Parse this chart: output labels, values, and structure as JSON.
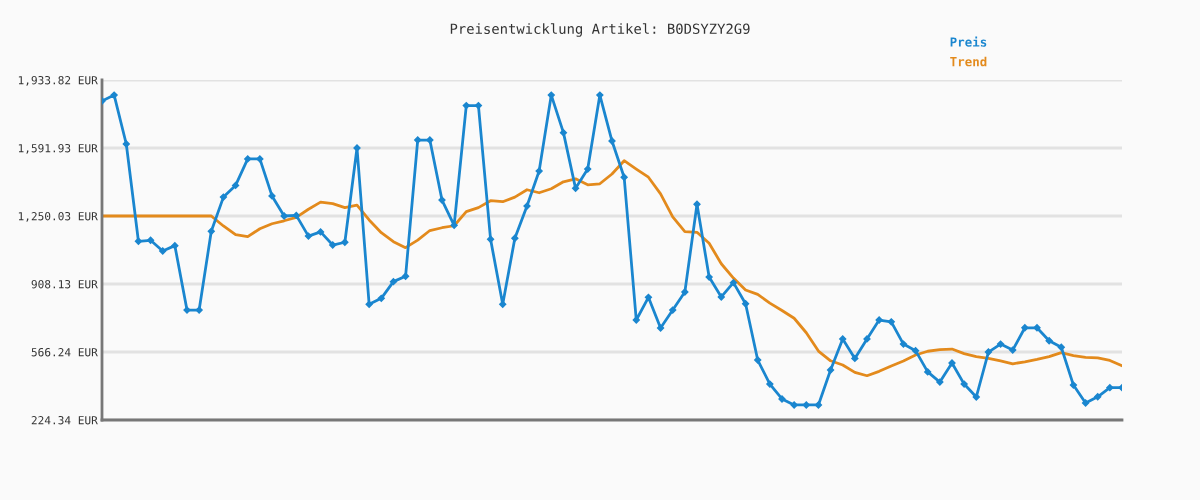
{
  "chart_data": {
    "type": "line",
    "title": "Preisentwicklung Artikel: B0DSYZY2G9",
    "categories": [
      null,
      null,
      null,
      null,
      null,
      null,
      null,
      null,
      null,
      null,
      null,
      null,
      null,
      null,
      null,
      null,
      null,
      null,
      null,
      null,
      null,
      null,
      null,
      null,
      null,
      null,
      null,
      null,
      null,
      null,
      null,
      null,
      null,
      null,
      null,
      null,
      null,
      null,
      null,
      null,
      null,
      null,
      null,
      null,
      null,
      null,
      null,
      null,
      null,
      null,
      null,
      null,
      null,
      null,
      null,
      null,
      null,
      null,
      null,
      null,
      null,
      null,
      null,
      null,
      null,
      null,
      null,
      null,
      null,
      null,
      null,
      null,
      null,
      null,
      null,
      null,
      null,
      null,
      null,
      null,
      null,
      null,
      null,
      null,
      null
    ],
    "series": [
      {
        "name": "Preis",
        "color": "#1a86cf",
        "marker": "diamond",
        "values": [
          1828,
          1858,
          1612,
          1123,
          1128,
          1074,
          1101,
          777,
          777,
          1173,
          1345,
          1404,
          1537,
          1537,
          1351,
          1250,
          1253,
          1149,
          1170,
          1104,
          1118,
          1592,
          806,
          836,
          920,
          947,
          1632,
          1632,
          1330,
          1203,
          1805,
          1805,
          1133,
          806,
          1138,
          1300,
          1476,
          1858,
          1669,
          1389,
          1486,
          1858,
          1627,
          1445,
          727,
          841,
          687,
          777,
          868,
          1309,
          943,
          843,
          915,
          809,
          526,
          405,
          330,
          300,
          300,
          300,
          476,
          632,
          534,
          632,
          727,
          718,
          606,
          573,
          466,
          415,
          511,
          405,
          340,
          566,
          606,
          576,
          688,
          688,
          623,
          590,
          400,
          310,
          341,
          387,
          387
        ]
      },
      {
        "name": "Trend",
        "color": "#e38a1c",
        "marker": "none",
        "values": [
          1250,
          1250,
          1250,
          1250,
          1250,
          1250,
          1250,
          1250,
          1250,
          1250,
          1200,
          1156,
          1146,
          1186,
          1211,
          1226,
          1243,
          1284,
          1320,
          1312,
          1292,
          1305,
          1230,
          1166,
          1121,
          1091,
          1129,
          1177,
          1191,
          1201,
          1272,
          1292,
          1327,
          1322,
          1345,
          1382,
          1367,
          1387,
          1422,
          1437,
          1407,
          1412,
          1461,
          1528,
          1486,
          1445,
          1361,
          1246,
          1171,
          1168,
          1113,
          1010,
          938,
          878,
          856,
          812,
          775,
          736,
          663,
          571,
          522,
          501,
          464,
          447,
          469,
          496,
          521,
          551,
          570,
          578,
          581,
          558,
          543,
          534,
          522,
          507,
          517,
          529,
          543,
          563,
          548,
          539,
          537,
          524,
          497
        ]
      }
    ],
    "ylim": [
      224.34,
      1933.82
    ],
    "yticks": [
      {
        "value": 224.34,
        "label": "224.34 EUR"
      },
      {
        "value": 566.24,
        "label": "566.24 EUR"
      },
      {
        "value": 908.13,
        "label": "908.13 EUR"
      },
      {
        "value": 1250.03,
        "label": "1,250.03 EUR"
      },
      {
        "value": 1591.93,
        "label": "1,591.93 EUR"
      },
      {
        "value": 1933.82,
        "label": "1,933.82 EUR"
      }
    ],
    "grid": "y",
    "legend": "top right",
    "tick_labels": "y"
  }
}
